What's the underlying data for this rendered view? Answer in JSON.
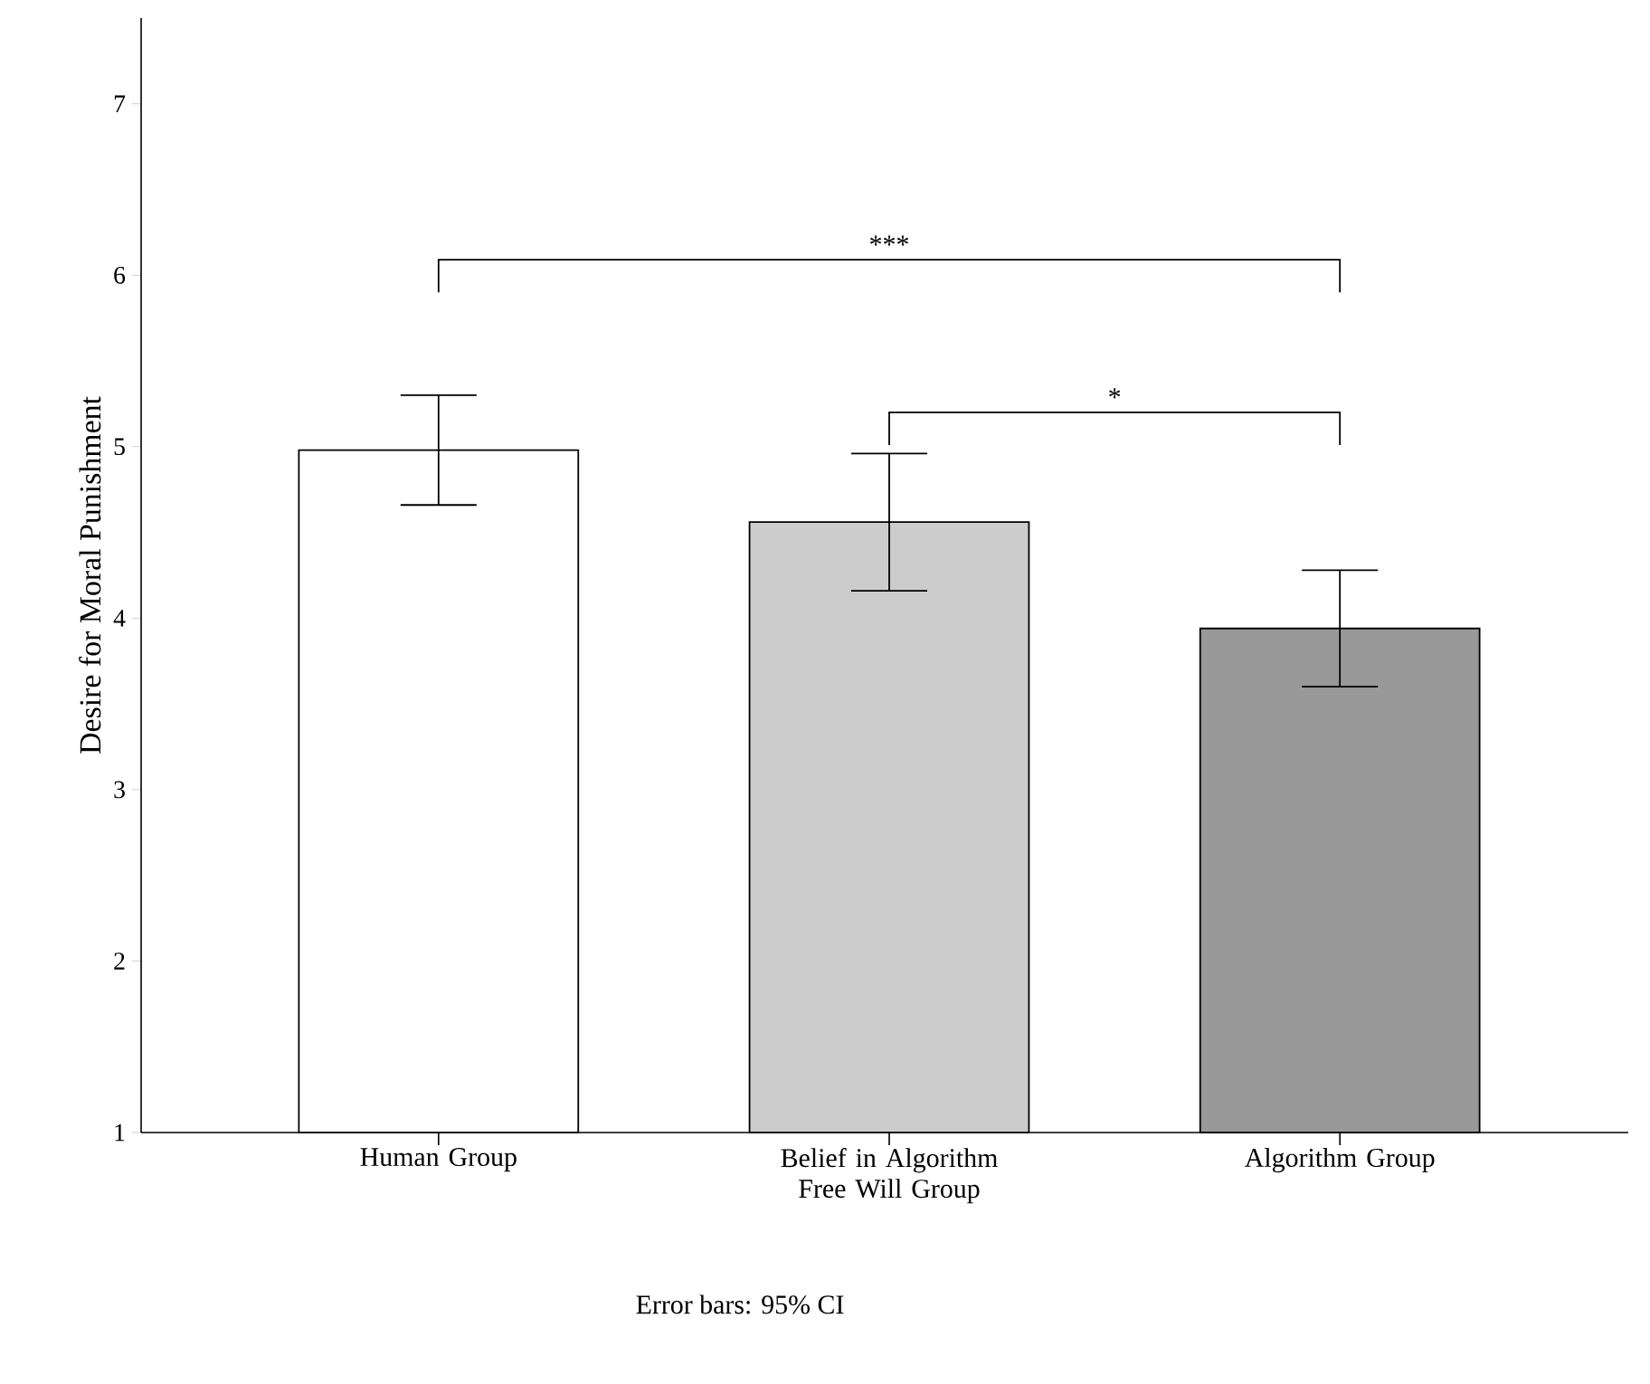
{
  "chart_data": {
    "type": "bar",
    "ylabel": "Desire for Moral Punishment",
    "categories": [
      "Human Group",
      "Belief in Algorithm Free Will Group",
      "Algorithm Group"
    ],
    "values": [
      4.98,
      4.56,
      3.94
    ],
    "colors": [
      "#ffffff",
      "#cccccc",
      "#999999"
    ],
    "errors": [
      [
        4.66,
        5.3
      ],
      [
        4.16,
        4.96
      ],
      [
        3.6,
        4.28
      ]
    ],
    "ylim": [
      1,
      7.5
    ],
    "yticks": [
      1,
      2,
      3,
      4,
      5,
      6,
      7
    ],
    "annotations": [
      "***",
      "*",
      "Error bars: 95% CI"
    ]
  }
}
